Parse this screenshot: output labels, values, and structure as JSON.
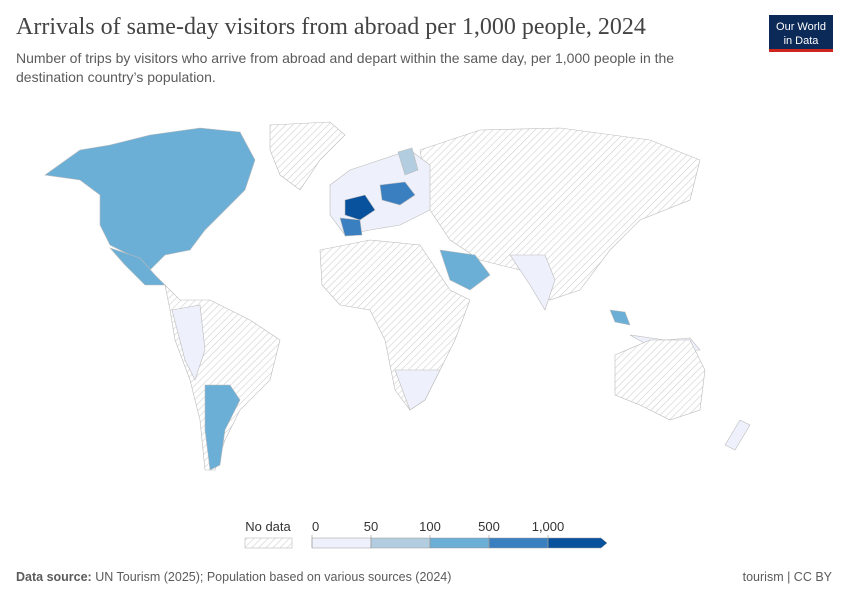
{
  "header": {
    "title": "Arrivals of same-day visitors from abroad per 1,000 people, 2024",
    "subtitle_lines": [
      "Number of trips by visitors who arrive from abroad and depart within the same day, per 1,000 people in the",
      "destination country’s population."
    ],
    "logo_lines": [
      "Our World",
      "in Data"
    ]
  },
  "legend": {
    "no_data": "No data",
    "ticks": [
      0,
      50,
      100,
      500,
      {
        "value": 1000,
        "label": "1,000"
      }
    ],
    "colors": [
      "#eef1fb",
      "#b3cde0",
      "#6baed6",
      "#3a7fc0",
      "#08519c"
    ]
  },
  "footer": {
    "source_label": "Data source:",
    "source_text": "UN Tourism (2025); Population based on various sources (2024)",
    "right": "tourism | CC BY"
  }
}
